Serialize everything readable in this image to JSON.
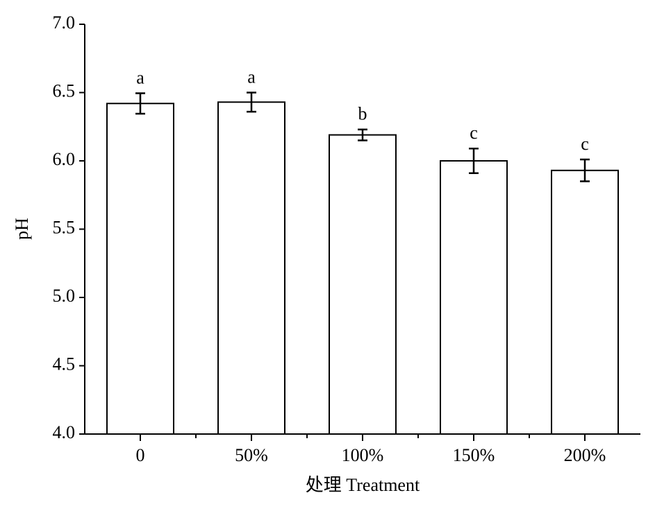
{
  "chart_data": {
    "type": "bar",
    "x_label": "处理 Treatment",
    "y_label": "pH",
    "categories": [
      "0",
      "50%",
      "100%",
      "150%",
      "200%"
    ],
    "values": [
      6.42,
      6.43,
      6.19,
      6.0,
      5.93
    ],
    "errors": [
      0.075,
      0.07,
      0.04,
      0.09,
      0.08
    ],
    "significance": [
      "a",
      "a",
      "b",
      "c",
      "c"
    ],
    "color": "#ffffff",
    "ylim": [
      4,
      7
    ],
    "yticks": [
      {
        "value": 4,
        "label": "4.0"
      },
      {
        "value": 4.5,
        "label": "4.5"
      },
      {
        "value": 5,
        "label": "5.0"
      },
      {
        "value": 5.5,
        "label": "5.5"
      },
      {
        "value": 6,
        "label": "6.0"
      },
      {
        "value": 6.5,
        "label": "6.5"
      },
      {
        "value": 7,
        "label": "7.0"
      }
    ],
    "grid": false
  }
}
